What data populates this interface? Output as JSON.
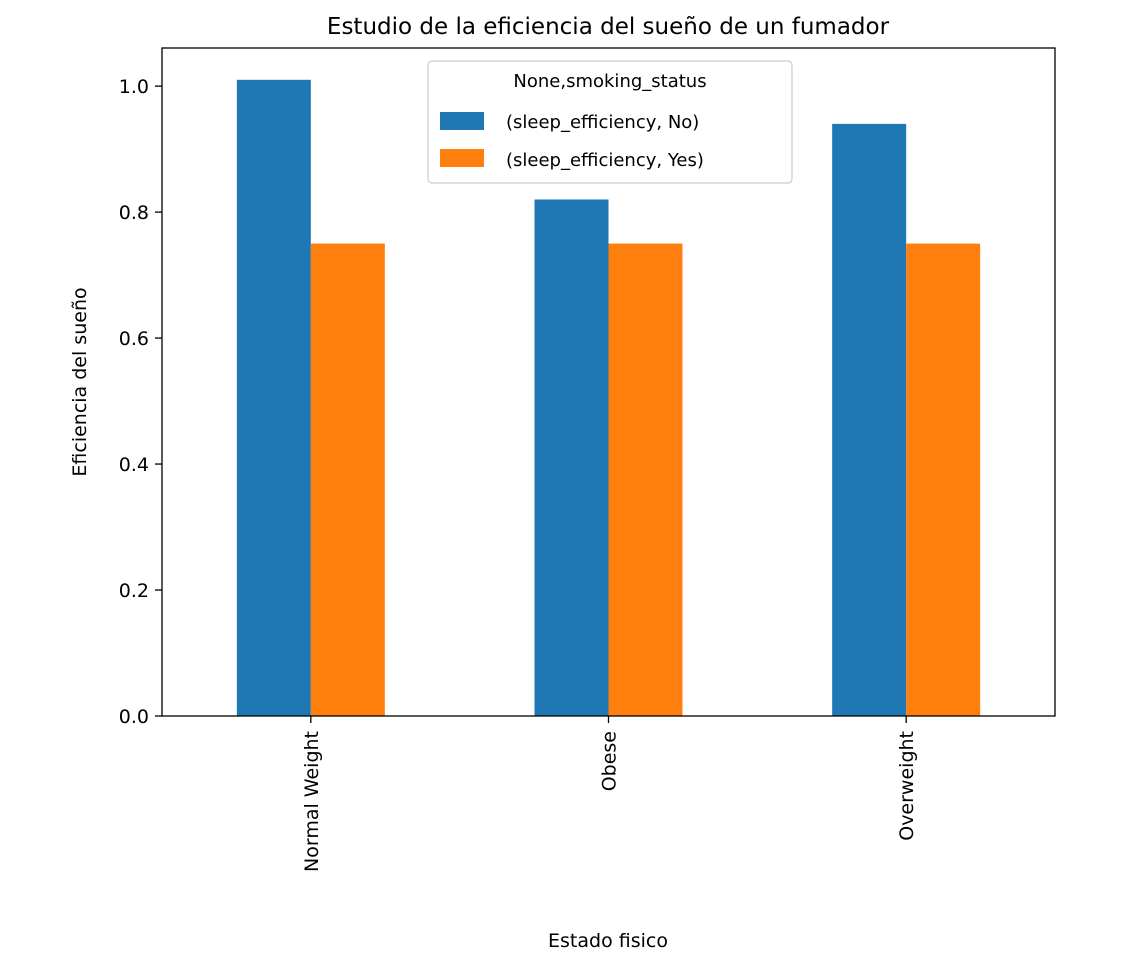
{
  "chart_data": {
    "type": "bar",
    "title": "Estudio de la eficiencia del sueño de un fumador",
    "xlabel": "Estado fisico",
    "ylabel": "Eficiencia del sueño",
    "categories": [
      "Normal Weight",
      "Obese",
      "Overweight"
    ],
    "series": [
      {
        "name": "(sleep_efficiency, No)",
        "values": [
          1.01,
          0.82,
          0.94
        ],
        "color": "#1f77b4"
      },
      {
        "name": "(sleep_efficiency, Yes)",
        "values": [
          0.75,
          0.75,
          0.75
        ],
        "color": "#ff7f0e"
      }
    ],
    "ylim": [
      0,
      1.0605
    ],
    "yticks": [
      0.0,
      0.2,
      0.4,
      0.6,
      0.8,
      1.0
    ],
    "ytick_labels": [
      "0.0",
      "0.2",
      "0.4",
      "0.6",
      "0.8",
      "1.0"
    ],
    "legend": {
      "title": "None,smoking_status",
      "placement": "upper center"
    },
    "grid": false
  }
}
